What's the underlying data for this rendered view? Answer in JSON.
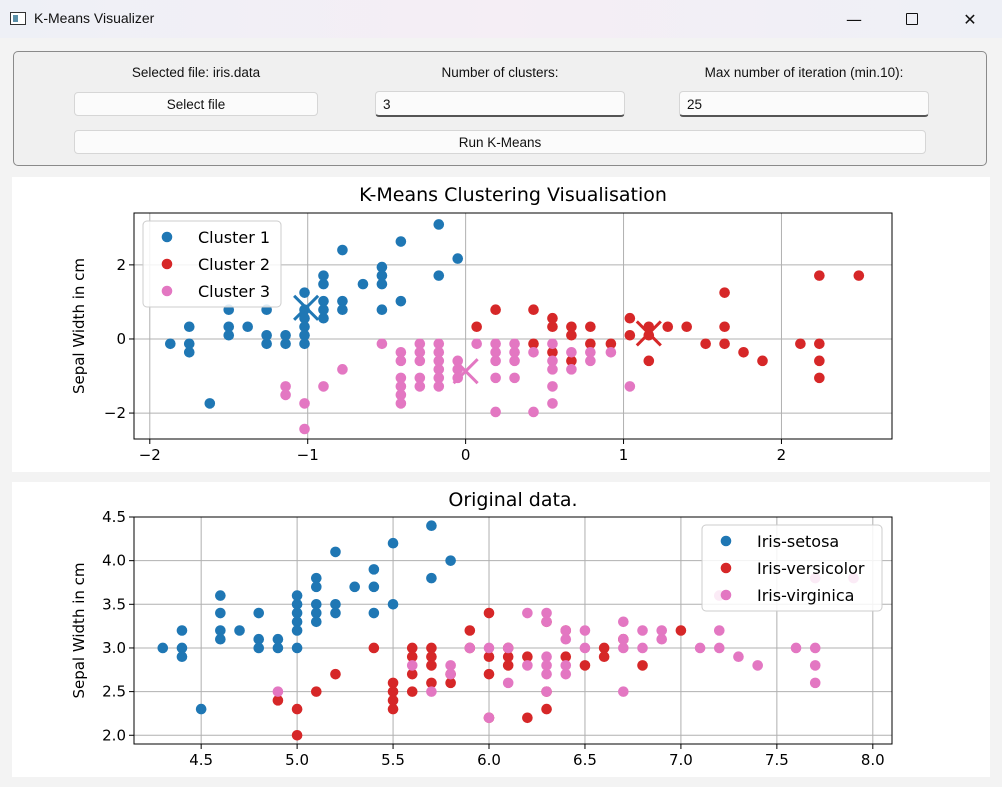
{
  "window": {
    "title": "K-Means Visualizer"
  },
  "controls": {
    "selected_file_label": "Selected file: iris.data",
    "select_file_button": "Select file",
    "clusters_label": "Number of clusters:",
    "clusters_value": "3",
    "iterations_label": "Max number of iteration (min.10):",
    "iterations_value": "25",
    "run_button": "Run K-Means"
  },
  "chart_data": [
    {
      "type": "scatter",
      "title": "K-Means Clustering Visualisation",
      "xlabel": "",
      "ylabel": "Sepal Width in cm",
      "xlim": [
        -2.1,
        2.7
      ],
      "ylim": [
        -2.7,
        3.4
      ],
      "xticks": [
        "−2",
        "−1",
        "0",
        "1",
        "2"
      ],
      "xtick_values": [
        -2,
        -1,
        0,
        1,
        2
      ],
      "yticks": [
        "−2",
        "0",
        "2"
      ],
      "ytick_values": [
        -2,
        0,
        2
      ],
      "grid": true,
      "legend": "top-left",
      "series": [
        {
          "name": "Cluster 1",
          "color": "#1f77b4",
          "points": [
            [
              -1.87,
              -0.13
            ],
            [
              -1.75,
              0.33
            ],
            [
              -1.75,
              -0.13
            ],
            [
              -1.75,
              -0.36
            ],
            [
              -1.62,
              -1.74
            ],
            [
              -1.5,
              0.79
            ],
            [
              -1.5,
              0.33
            ],
            [
              -1.5,
              0.1
            ],
            [
              -1.38,
              0.33
            ],
            [
              -1.26,
              0.79
            ],
            [
              -1.26,
              0.1
            ],
            [
              -1.26,
              -0.13
            ],
            [
              -1.14,
              0.1
            ],
            [
              -1.14,
              -0.13
            ],
            [
              -1.02,
              1.25
            ],
            [
              -1.02,
              0.79
            ],
            [
              -1.02,
              0.56
            ],
            [
              -1.02,
              0.33
            ],
            [
              -1.02,
              0.1
            ],
            [
              -1.02,
              -0.13
            ],
            [
              -0.9,
              1.02
            ],
            [
              -0.9,
              0.79
            ],
            [
              -0.9,
              0.56
            ],
            [
              -0.9,
              1.48
            ],
            [
              -0.9,
              1.71
            ],
            [
              -0.78,
              2.4
            ],
            [
              -0.78,
              1.02
            ],
            [
              -0.78,
              0.79
            ],
            [
              -0.65,
              1.48
            ],
            [
              -0.53,
              1.94
            ],
            [
              -0.53,
              1.71
            ],
            [
              -0.53,
              1.48
            ],
            [
              -0.53,
              0.79
            ],
            [
              -0.41,
              2.63
            ],
            [
              -0.41,
              1.02
            ],
            [
              -0.17,
              3.09
            ],
            [
              -0.17,
              1.71
            ],
            [
              -0.05,
              2.17
            ]
          ]
        },
        {
          "name": "Cluster 2",
          "color": "#d62728",
          "points": [
            [
              0.07,
              0.33
            ],
            [
              0.19,
              0.79
            ],
            [
              0.43,
              0.79
            ],
            [
              0.43,
              -0.13
            ],
            [
              0.55,
              0.56
            ],
            [
              0.55,
              0.33
            ],
            [
              0.55,
              -0.36
            ],
            [
              0.67,
              0.33
            ],
            [
              0.67,
              0.1
            ],
            [
              0.67,
              -0.59
            ],
            [
              0.79,
              0.33
            ],
            [
              0.79,
              -0.13
            ],
            [
              0.92,
              -0.13
            ],
            [
              1.04,
              0.56
            ],
            [
              1.04,
              0.1
            ],
            [
              1.16,
              0.33
            ],
            [
              1.16,
              0.1
            ],
            [
              1.16,
              -0.59
            ],
            [
              1.28,
              0.33
            ],
            [
              1.4,
              0.33
            ],
            [
              1.52,
              -0.13
            ],
            [
              1.64,
              1.25
            ],
            [
              1.64,
              0.33
            ],
            [
              1.64,
              -0.13
            ],
            [
              1.76,
              -0.36
            ],
            [
              1.88,
              -0.59
            ],
            [
              2.12,
              -0.13
            ],
            [
              2.24,
              1.71
            ],
            [
              2.24,
              -0.13
            ],
            [
              2.24,
              -0.59
            ],
            [
              2.24,
              -1.05
            ],
            [
              2.49,
              1.71
            ]
          ]
        },
        {
          "name": "Cluster 3",
          "color": "#e377c2",
          "points": [
            [
              -1.14,
              -1.28
            ],
            [
              -1.14,
              -1.51
            ],
            [
              -1.02,
              -1.74
            ],
            [
              -1.02,
              -2.43
            ],
            [
              -0.9,
              -1.28
            ],
            [
              -0.78,
              -0.82
            ],
            [
              -0.53,
              -0.13
            ],
            [
              -0.41,
              -0.36
            ],
            [
              -0.41,
              -0.59
            ],
            [
              -0.41,
              -1.05
            ],
            [
              -0.41,
              -1.28
            ],
            [
              -0.41,
              -1.51
            ],
            [
              -0.41,
              -1.74
            ],
            [
              -0.29,
              -0.13
            ],
            [
              -0.29,
              -0.36
            ],
            [
              -0.29,
              -0.59
            ],
            [
              -0.29,
              -1.05
            ],
            [
              -0.29,
              -1.28
            ],
            [
              -0.17,
              -0.13
            ],
            [
              -0.17,
              -0.36
            ],
            [
              -0.17,
              -0.59
            ],
            [
              -0.17,
              -0.82
            ],
            [
              -0.17,
              -1.05
            ],
            [
              -0.17,
              -1.28
            ],
            [
              -0.05,
              -0.59
            ],
            [
              -0.05,
              -0.82
            ],
            [
              -0.05,
              -1.05
            ],
            [
              0.07,
              -0.13
            ],
            [
              0.19,
              -0.13
            ],
            [
              0.19,
              -0.36
            ],
            [
              0.19,
              -0.59
            ],
            [
              0.19,
              -1.05
            ],
            [
              0.19,
              -1.97
            ],
            [
              0.31,
              -0.13
            ],
            [
              0.31,
              -0.36
            ],
            [
              0.31,
              -0.59
            ],
            [
              0.31,
              -1.05
            ],
            [
              0.43,
              -0.36
            ],
            [
              0.43,
              -1.97
            ],
            [
              0.55,
              -0.13
            ],
            [
              0.55,
              -0.59
            ],
            [
              0.55,
              -0.82
            ],
            [
              0.55,
              -1.28
            ],
            [
              0.55,
              -1.74
            ],
            [
              0.67,
              -0.36
            ],
            [
              0.67,
              -0.82
            ],
            [
              0.79,
              -0.36
            ],
            [
              0.79,
              -0.59
            ],
            [
              0.92,
              -0.36
            ],
            [
              1.04,
              -1.28
            ]
          ]
        }
      ],
      "centroids": [
        {
          "color": "#1f77b4",
          "x": -1.01,
          "y": 0.84
        },
        {
          "color": "#d62728",
          "x": 1.16,
          "y": 0.15
        },
        {
          "color": "#e377c2",
          "x": 0.0,
          "y": -0.87
        }
      ]
    },
    {
      "type": "scatter",
      "title": "Original data.",
      "xlabel": "",
      "ylabel": "Sepal Width in cm",
      "xlim": [
        4.15,
        8.1
      ],
      "ylim": [
        1.9,
        4.5
      ],
      "xticks": [
        "4.5",
        "5.0",
        "5.5",
        "6.0",
        "6.5",
        "7.0",
        "7.5",
        "8.0"
      ],
      "xtick_values": [
        4.5,
        5.0,
        5.5,
        6.0,
        6.5,
        7.0,
        7.5,
        8.0
      ],
      "yticks": [
        "2.0",
        "2.5",
        "3.0",
        "3.5",
        "4.0",
        "4.5"
      ],
      "ytick_values": [
        2.0,
        2.5,
        3.0,
        3.5,
        4.0,
        4.5
      ],
      "grid": true,
      "legend": "top-right",
      "series": [
        {
          "name": "Iris-setosa",
          "color": "#1f77b4",
          "points": [
            [
              4.3,
              3.0
            ],
            [
              4.4,
              3.2
            ],
            [
              4.4,
              3.0
            ],
            [
              4.4,
              2.9
            ],
            [
              4.5,
              2.3
            ],
            [
              4.6,
              3.6
            ],
            [
              4.6,
              3.4
            ],
            [
              4.6,
              3.2
            ],
            [
              4.6,
              3.1
            ],
            [
              4.7,
              3.2
            ],
            [
              4.8,
              3.4
            ],
            [
              4.8,
              3.1
            ],
            [
              4.8,
              3.0
            ],
            [
              4.9,
              3.1
            ],
            [
              4.9,
              3.0
            ],
            [
              5.0,
              3.6
            ],
            [
              5.0,
              3.5
            ],
            [
              5.0,
              3.4
            ],
            [
              5.0,
              3.3
            ],
            [
              5.0,
              3.2
            ],
            [
              5.0,
              3.0
            ],
            [
              5.1,
              3.8
            ],
            [
              5.1,
              3.7
            ],
            [
              5.1,
              3.5
            ],
            [
              5.1,
              3.4
            ],
            [
              5.1,
              3.3
            ],
            [
              5.2,
              4.1
            ],
            [
              5.2,
              3.5
            ],
            [
              5.2,
              3.4
            ],
            [
              5.3,
              3.7
            ],
            [
              5.4,
              3.9
            ],
            [
              5.4,
              3.7
            ],
            [
              5.4,
              3.4
            ],
            [
              5.5,
              4.2
            ],
            [
              5.5,
              3.5
            ],
            [
              5.7,
              4.4
            ],
            [
              5.7,
              3.8
            ],
            [
              5.8,
              4.0
            ]
          ]
        },
        {
          "name": "Iris-versicolor",
          "color": "#d62728",
          "points": [
            [
              4.9,
              2.4
            ],
            [
              5.0,
              2.3
            ],
            [
              5.0,
              2.0
            ],
            [
              5.1,
              2.5
            ],
            [
              5.2,
              2.7
            ],
            [
              5.4,
              3.0
            ],
            [
              5.5,
              2.6
            ],
            [
              5.5,
              2.5
            ],
            [
              5.5,
              2.4
            ],
            [
              5.5,
              2.3
            ],
            [
              5.6,
              3.0
            ],
            [
              5.6,
              2.9
            ],
            [
              5.6,
              2.7
            ],
            [
              5.6,
              2.5
            ],
            [
              5.7,
              3.0
            ],
            [
              5.7,
              2.9
            ],
            [
              5.7,
              2.8
            ],
            [
              5.7,
              2.6
            ],
            [
              5.8,
              2.7
            ],
            [
              5.8,
              2.6
            ],
            [
              5.9,
              3.2
            ],
            [
              5.9,
              3.0
            ],
            [
              6.0,
              3.4
            ],
            [
              6.0,
              2.9
            ],
            [
              6.0,
              2.7
            ],
            [
              6.0,
              2.2
            ],
            [
              6.1,
              3.0
            ],
            [
              6.1,
              2.9
            ],
            [
              6.1,
              2.8
            ],
            [
              6.2,
              2.9
            ],
            [
              6.2,
              2.2
            ],
            [
              6.3,
              3.3
            ],
            [
              6.3,
              2.5
            ],
            [
              6.3,
              2.3
            ],
            [
              6.4,
              3.2
            ],
            [
              6.4,
              2.9
            ],
            [
              6.5,
              2.8
            ],
            [
              6.6,
              3.0
            ],
            [
              6.6,
              2.9
            ],
            [
              6.7,
              3.1
            ],
            [
              6.8,
              2.8
            ],
            [
              7.0,
              3.2
            ]
          ]
        },
        {
          "name": "Iris-virginica",
          "color": "#e377c2",
          "points": [
            [
              4.9,
              2.5
            ],
            [
              5.6,
              2.8
            ],
            [
              5.7,
              2.5
            ],
            [
              5.8,
              2.8
            ],
            [
              5.8,
              2.7
            ],
            [
              5.9,
              3.0
            ],
            [
              6.0,
              3.0
            ],
            [
              6.0,
              2.2
            ],
            [
              6.1,
              3.0
            ],
            [
              6.1,
              2.6
            ],
            [
              6.2,
              3.4
            ],
            [
              6.2,
              2.8
            ],
            [
              6.3,
              3.4
            ],
            [
              6.3,
              3.3
            ],
            [
              6.3,
              2.9
            ],
            [
              6.3,
              2.8
            ],
            [
              6.3,
              2.7
            ],
            [
              6.3,
              2.5
            ],
            [
              6.4,
              3.2
            ],
            [
              6.4,
              3.1
            ],
            [
              6.4,
              2.8
            ],
            [
              6.4,
              2.7
            ],
            [
              6.5,
              3.2
            ],
            [
              6.5,
              3.0
            ],
            [
              6.7,
              3.3
            ],
            [
              6.7,
              3.1
            ],
            [
              6.7,
              3.0
            ],
            [
              6.7,
              2.5
            ],
            [
              6.8,
              3.2
            ],
            [
              6.8,
              3.0
            ],
            [
              6.9,
              3.2
            ],
            [
              6.9,
              3.1
            ],
            [
              7.1,
              3.0
            ],
            [
              7.2,
              3.6
            ],
            [
              7.2,
              3.2
            ],
            [
              7.2,
              3.0
            ],
            [
              7.3,
              2.9
            ],
            [
              7.4,
              2.8
            ],
            [
              7.6,
              3.0
            ],
            [
              7.7,
              3.8
            ],
            [
              7.7,
              3.0
            ],
            [
              7.7,
              2.8
            ],
            [
              7.7,
              2.6
            ],
            [
              7.9,
              3.8
            ]
          ]
        }
      ]
    }
  ]
}
